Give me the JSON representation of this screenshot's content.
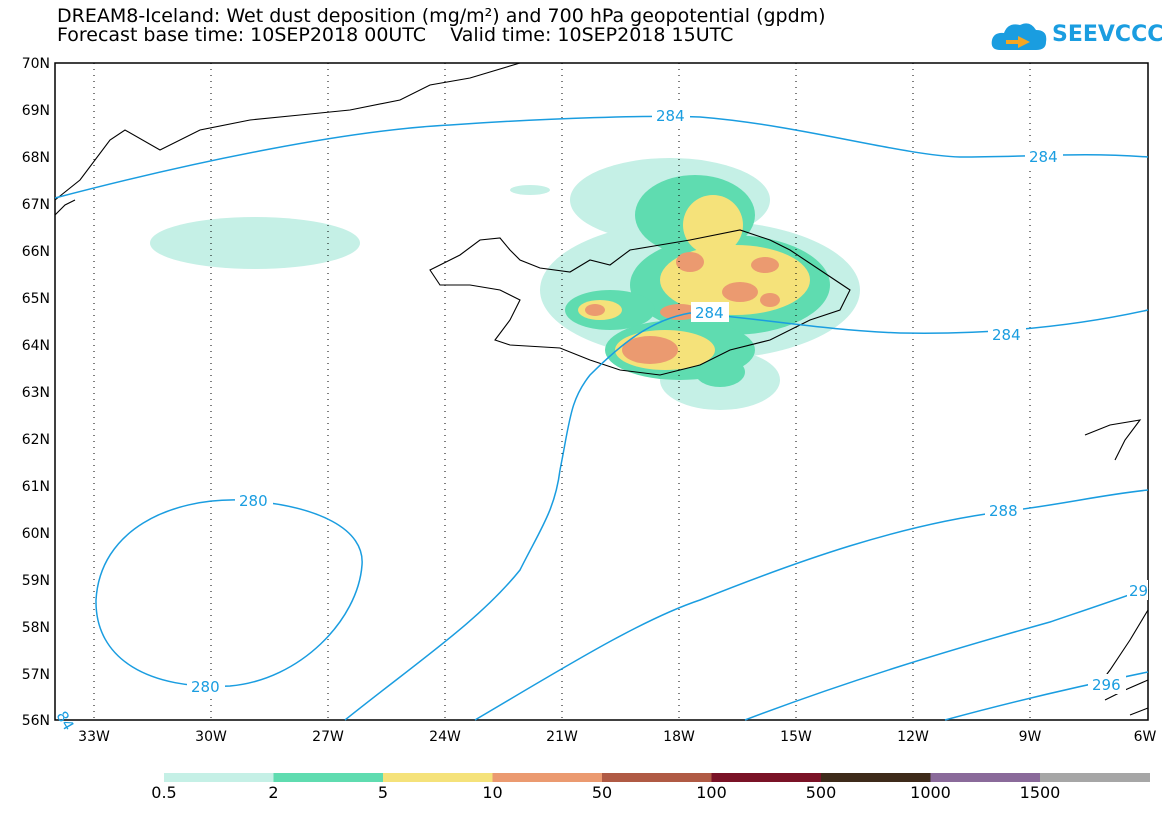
{
  "title": {
    "line1": "DREAM8-Iceland: Wet dust deposition (mg/m²) and 700 hPa geopotential (gpdm)",
    "line2": "Forecast base time: 10SEP2018 00UTC    Valid time: 10SEP2018 15UTC"
  },
  "logo": {
    "text": "SEEVCCC",
    "icon": "cloud-icon",
    "color": "#1a9de0"
  },
  "map": {
    "lat_labels": [
      "70N",
      "69N",
      "68N",
      "67N",
      "66N",
      "65N",
      "64N",
      "63N",
      "62N",
      "61N",
      "60N",
      "59N",
      "58N",
      "57N",
      "56N"
    ],
    "lon_labels": [
      "33W",
      "30W",
      "27W",
      "24W",
      "21W",
      "18W",
      "15W",
      "12W",
      "9W",
      "6W"
    ],
    "contour_color": "#1a9de0",
    "contour_labels": [
      "284",
      "284",
      "284",
      "284",
      "280",
      "280",
      "288",
      "296",
      "29",
      "84"
    ]
  },
  "legend": {
    "colors": [
      "#c5f0e6",
      "#5fdcb0",
      "#f5e27a",
      "#eb9a70",
      "#b05a44",
      "#7a1226",
      "#3e2a1a",
      "#8a6a9a",
      "#a6a6a6"
    ],
    "labels": [
      "0.5",
      "2",
      "5",
      "10",
      "50",
      "100",
      "500",
      "1000",
      "1500"
    ]
  }
}
